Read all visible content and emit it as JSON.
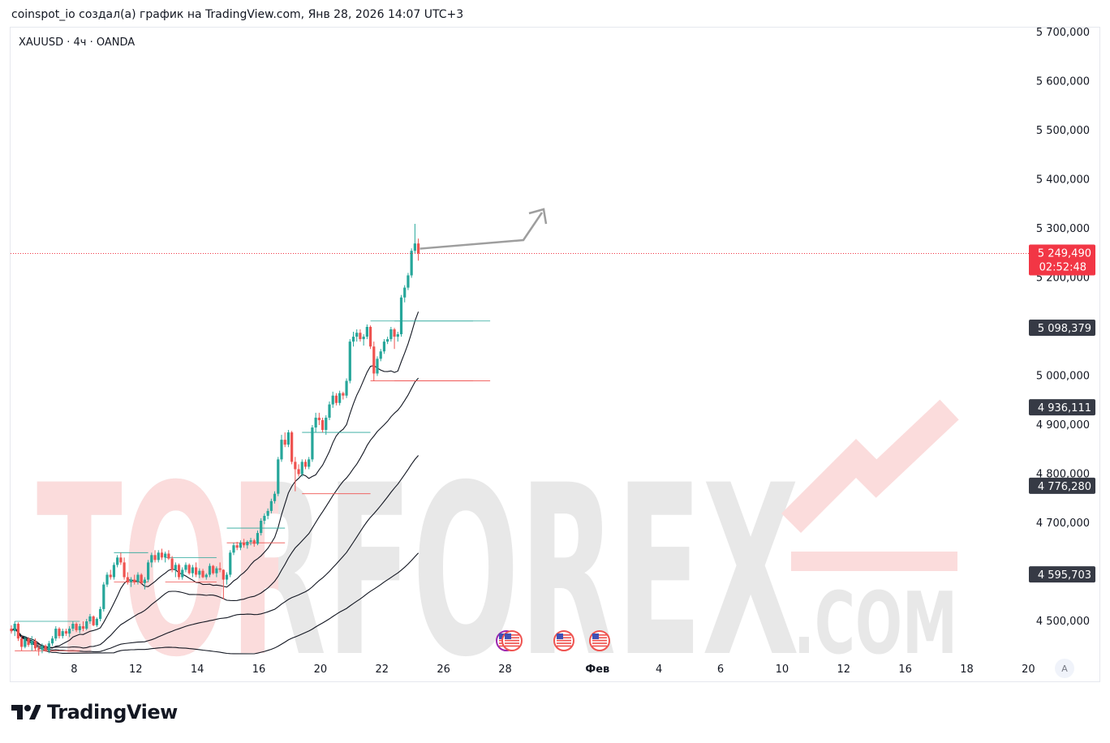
{
  "header": {
    "attribution": "coinspot_io создал(а) график на TradingView.com, Янв 28, 2026 14:07 UTC+3"
  },
  "symbol": {
    "label": "XAUUSD · 4ч · OANDA"
  },
  "watermark": {
    "main": "TORFOREX",
    "sub": ".COM"
  },
  "footer": {
    "brand": "TradingView",
    "auto_scale_label": "A"
  },
  "colors": {
    "up": "#26a69a",
    "down": "#ef5350",
    "price_line": "#f23645",
    "ma": "#131722",
    "badge_dark": "#363a45",
    "watermark_red": "#fbdcdc",
    "watermark_grey": "#e8e8e8"
  },
  "chart_data": {
    "type": "candlestick",
    "symbol": "XAUUSD",
    "timeframe": "4ч",
    "exchange": "OANDA",
    "y_axis": {
      "range": [
        4435000,
        5720000
      ],
      "ticks": [
        4500000,
        4600000,
        4700000,
        4800000,
        4900000,
        5000000,
        5100000,
        5200000,
        5300000,
        5400000,
        5500000,
        5600000,
        5700000
      ],
      "tick_labels": [
        "4 500,000",
        "4 600,000",
        "4 700,000",
        "4 800,000",
        "4 900,000",
        "5 000,000",
        "5 100,000",
        "5 200,000",
        "5 300,000",
        "5 400,000",
        "5 500,000",
        "5 600,000",
        "5 700,000"
      ]
    },
    "x_axis": {
      "ticks": [
        {
          "label": "8",
          "bar": 6.5
        },
        {
          "label": "12",
          "bar": 24.5
        },
        {
          "label": "14",
          "bar": 42.5
        },
        {
          "label": "16",
          "bar": 60.5
        },
        {
          "label": "20",
          "bar": 78.5
        },
        {
          "label": "22",
          "bar": 96.5
        },
        {
          "label": "26",
          "bar": 114.5
        },
        {
          "label": "28",
          "bar": 132.5
        },
        {
          "label": "Фев",
          "bar": 159.5,
          "bold": true
        },
        {
          "label": "4",
          "bar": 177.5
        },
        {
          "label": "6",
          "bar": 195.5
        },
        {
          "label": "10",
          "bar": 213.5
        },
        {
          "label": "12",
          "bar": 231.5
        },
        {
          "label": "16",
          "bar": 249.5
        },
        {
          "label": "18",
          "bar": 267.5
        },
        {
          "label": "20",
          "bar": 285.5
        }
      ],
      "bar_range": [
        0,
        296
      ]
    },
    "current_price": {
      "value": 5249490,
      "label": "5 249,490",
      "countdown": "02:52:48"
    },
    "price_badges": [
      {
        "value": 5098379,
        "label": "5 098,379"
      },
      {
        "value": 4936111,
        "label": "4 936,111"
      },
      {
        "value": 4776280,
        "label": "4 776,280"
      },
      {
        "value": 4595703,
        "label": "4 595,703"
      }
    ],
    "candles": [
      [
        4485000,
        4492000,
        4475000,
        4480000
      ],
      [
        4480000,
        4500000,
        4470000,
        4495000
      ],
      [
        4495000,
        4498000,
        4460000,
        4465000
      ],
      [
        4465000,
        4470000,
        4440000,
        4448000
      ],
      [
        4448000,
        4470000,
        4445000,
        4465000
      ],
      [
        4465000,
        4468000,
        4448000,
        4452000
      ],
      [
        4452000,
        4470000,
        4440000,
        4460000
      ],
      [
        4460000,
        4465000,
        4440000,
        4445000
      ],
      [
        4445000,
        4450000,
        4430000,
        4442000
      ],
      [
        4442000,
        4455000,
        4435000,
        4450000
      ],
      [
        4450000,
        4453000,
        4438000,
        4440000
      ],
      [
        4440000,
        4460000,
        4435000,
        4455000
      ],
      [
        4455000,
        4470000,
        4450000,
        4465000
      ],
      [
        4465000,
        4490000,
        4460000,
        4485000
      ],
      [
        4485000,
        4488000,
        4465000,
        4470000
      ],
      [
        4470000,
        4485000,
        4465000,
        4480000
      ],
      [
        4480000,
        4485000,
        4470000,
        4475000
      ],
      [
        4475000,
        4490000,
        4468000,
        4485000
      ],
      [
        4485000,
        4500000,
        4480000,
        4495000
      ],
      [
        4495000,
        4498000,
        4478000,
        4482000
      ],
      [
        4482000,
        4495000,
        4476000,
        4490000
      ],
      [
        4490000,
        4500000,
        4480000,
        4485000
      ],
      [
        4485000,
        4505000,
        4482000,
        4500000
      ],
      [
        4500000,
        4515000,
        4495000,
        4510000
      ],
      [
        4510000,
        4512000,
        4490000,
        4492000
      ],
      [
        4492000,
        4508000,
        4488000,
        4505000
      ],
      [
        4505000,
        4530000,
        4500000,
        4525000
      ],
      [
        4525000,
        4580000,
        4520000,
        4575000
      ],
      [
        4575000,
        4600000,
        4570000,
        4595000
      ],
      [
        4595000,
        4605000,
        4585000,
        4590000
      ],
      [
        4590000,
        4620000,
        4585000,
        4615000
      ],
      [
        4615000,
        4635000,
        4610000,
        4630000
      ],
      [
        4630000,
        4640000,
        4615000,
        4620000
      ],
      [
        4620000,
        4630000,
        4585000,
        4590000
      ],
      [
        4590000,
        4600000,
        4575000,
        4580000
      ],
      [
        4580000,
        4590000,
        4570000,
        4585000
      ],
      [
        4585000,
        4595000,
        4575000,
        4580000
      ],
      [
        4580000,
        4600000,
        4575000,
        4595000
      ],
      [
        4595000,
        4598000,
        4575000,
        4578000
      ],
      [
        4578000,
        4590000,
        4565000,
        4585000
      ],
      [
        4585000,
        4625000,
        4580000,
        4620000
      ],
      [
        4620000,
        4640000,
        4610000,
        4635000
      ],
      [
        4635000,
        4645000,
        4620000,
        4625000
      ],
      [
        4625000,
        4645000,
        4620000,
        4640000
      ],
      [
        4640000,
        4648000,
        4625000,
        4630000
      ],
      [
        4630000,
        4642000,
        4620000,
        4638000
      ],
      [
        4638000,
        4645000,
        4625000,
        4628000
      ],
      [
        4628000,
        4633000,
        4600000,
        4605000
      ],
      [
        4605000,
        4620000,
        4590000,
        4615000
      ],
      [
        4615000,
        4618000,
        4585000,
        4590000
      ],
      [
        4590000,
        4610000,
        4585000,
        4605000
      ],
      [
        4605000,
        4620000,
        4600000,
        4615000
      ],
      [
        4615000,
        4618000,
        4595000,
        4598000
      ],
      [
        4598000,
        4615000,
        4590000,
        4610000
      ],
      [
        4610000,
        4620000,
        4590000,
        4595000
      ],
      [
        4595000,
        4608000,
        4588000,
        4603000
      ],
      [
        4603000,
        4607000,
        4588000,
        4590000
      ],
      [
        4590000,
        4598000,
        4585000,
        4595000
      ],
      [
        4595000,
        4618000,
        4590000,
        4613000
      ],
      [
        4613000,
        4615000,
        4595000,
        4598000
      ],
      [
        4598000,
        4612000,
        4590000,
        4608000
      ],
      [
        4608000,
        4620000,
        4600000,
        4605000
      ],
      [
        4605000,
        4606000,
        4545000,
        4585000
      ],
      [
        4585000,
        4600000,
        4575000,
        4595000
      ],
      [
        4595000,
        4645000,
        4590000,
        4640000
      ],
      [
        4640000,
        4660000,
        4635000,
        4655000
      ],
      [
        4655000,
        4662000,
        4645000,
        4650000
      ],
      [
        4650000,
        4665000,
        4645000,
        4660000
      ],
      [
        4660000,
        4668000,
        4650000,
        4655000
      ],
      [
        4655000,
        4665000,
        4648000,
        4662000
      ],
      [
        4662000,
        4670000,
        4655000,
        4665000
      ],
      [
        4665000,
        4668000,
        4652000,
        4658000
      ],
      [
        4658000,
        4685000,
        4655000,
        4680000
      ],
      [
        4680000,
        4710000,
        4675000,
        4705000
      ],
      [
        4705000,
        4720000,
        4698000,
        4715000
      ],
      [
        4715000,
        4730000,
        4708000,
        4725000
      ],
      [
        4725000,
        4750000,
        4720000,
        4745000
      ],
      [
        4745000,
        4765000,
        4740000,
        4760000
      ],
      [
        4760000,
        4835000,
        4755000,
        4830000
      ],
      [
        4830000,
        4880000,
        4825000,
        4870000
      ],
      [
        4870000,
        4885000,
        4855000,
        4860000
      ],
      [
        4860000,
        4890000,
        4855000,
        4885000
      ],
      [
        4885000,
        4888000,
        4820000,
        4825000
      ],
      [
        4825000,
        4835000,
        4765000,
        4810000
      ],
      [
        4810000,
        4820000,
        4795000,
        4800000
      ],
      [
        4800000,
        4830000,
        4795000,
        4825000
      ],
      [
        4825000,
        4830000,
        4810000,
        4815000
      ],
      [
        4815000,
        4835000,
        4810000,
        4830000
      ],
      [
        4830000,
        4900000,
        4825000,
        4895000
      ],
      [
        4895000,
        4925000,
        4885000,
        4915000
      ],
      [
        4915000,
        4925000,
        4900000,
        4910000
      ],
      [
        4910000,
        4915000,
        4885000,
        4890000
      ],
      [
        4890000,
        4920000,
        4880000,
        4915000
      ],
      [
        4915000,
        4948000,
        4910000,
        4942000
      ],
      [
        4942000,
        4968000,
        4935000,
        4960000
      ],
      [
        4960000,
        4965000,
        4940000,
        4945000
      ],
      [
        4945000,
        4970000,
        4940000,
        4965000
      ],
      [
        4965000,
        4968000,
        4952000,
        4960000
      ],
      [
        4960000,
        4995000,
        4955000,
        4990000
      ],
      [
        4990000,
        5075000,
        4985000,
        5070000
      ],
      [
        5070000,
        5090000,
        5060000,
        5080000
      ],
      [
        5080000,
        5095000,
        5070000,
        5088000
      ],
      [
        5088000,
        5095000,
        5070000,
        5075000
      ],
      [
        5075000,
        5085000,
        5062000,
        5080000
      ],
      [
        5080000,
        5105000,
        5075000,
        5100000
      ],
      [
        5100000,
        5103000,
        5055000,
        5060000
      ],
      [
        5060000,
        5070000,
        4990000,
        5005000
      ],
      [
        5005000,
        5040000,
        5000000,
        5035000
      ],
      [
        5035000,
        5055000,
        5030000,
        5050000
      ],
      [
        5050000,
        5075000,
        5045000,
        5070000
      ],
      [
        5070000,
        5080000,
        5065000,
        5075000
      ],
      [
        5075000,
        5100000,
        5070000,
        5095000
      ],
      [
        5095000,
        5098000,
        5055000,
        5080000
      ],
      [
        5080000,
        5090000,
        5070000,
        5085000
      ],
      [
        5085000,
        5165000,
        5080000,
        5160000
      ],
      [
        5160000,
        5185000,
        5150000,
        5180000
      ],
      [
        5180000,
        5210000,
        5175000,
        5205000
      ],
      [
        5205000,
        5260000,
        5200000,
        5255000
      ],
      [
        5255000,
        5310000,
        5250000,
        5270000
      ],
      [
        5270000,
        5280000,
        5235000,
        5249490
      ]
    ],
    "moving_averages": [
      {
        "name": "",
        "end": 5098379
      },
      {
        "name": "",
        "end": 4936111
      },
      {
        "name": "",
        "end": 4776280
      },
      {
        "name": "",
        "end": 4595703
      }
    ],
    "grid": false,
    "forecast_arrow": "up"
  }
}
